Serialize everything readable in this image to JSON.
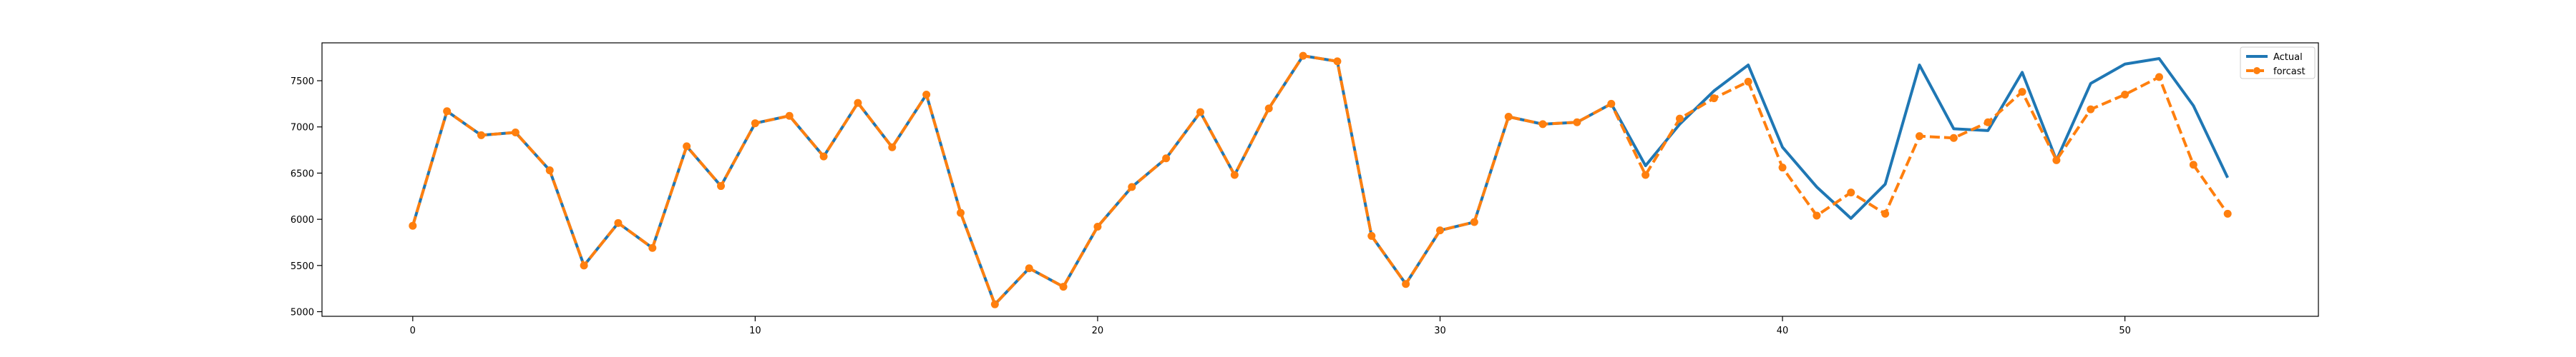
{
  "chart_data": {
    "type": "line",
    "title": "",
    "xlabel": "",
    "ylabel": "",
    "xlim": [
      -2.65,
      55.65
    ],
    "ylim": [
      4950,
      7910
    ],
    "xticks": [
      0,
      10,
      20,
      30,
      40,
      50
    ],
    "xtick_labels": [
      "0",
      "10",
      "20",
      "30",
      "40",
      "50"
    ],
    "yticks": [
      5000,
      5500,
      6000,
      6500,
      7000,
      7500
    ],
    "ytick_labels": [
      "5000",
      "5500",
      "6000",
      "6500",
      "7000",
      "7500"
    ],
    "grid": false,
    "legend": {
      "placement": "top-right"
    },
    "x": [
      0,
      1,
      2,
      3,
      4,
      5,
      6,
      7,
      8,
      9,
      10,
      11,
      12,
      13,
      14,
      15,
      16,
      17,
      18,
      19,
      20,
      21,
      22,
      23,
      24,
      25,
      26,
      27,
      28,
      29,
      30,
      31,
      32,
      33,
      34,
      35,
      36,
      37,
      38,
      39,
      40,
      41,
      42,
      43,
      44,
      45,
      46,
      47,
      48,
      49,
      50,
      51,
      52,
      53
    ],
    "series": [
      {
        "name": "Actual",
        "color": "#1f77b4",
        "style": "solid",
        "marker": "none",
        "values": [
          5930,
          7170,
          6910,
          6940,
          6530,
          5500,
          5960,
          5690,
          6790,
          6360,
          7040,
          7120,
          6680,
          7260,
          6780,
          7350,
          6070,
          5080,
          5470,
          5270,
          5920,
          6350,
          6660,
          7160,
          6480,
          7200,
          7770,
          7710,
          5820,
          5300,
          5880,
          5970,
          7110,
          7030,
          7050,
          7250,
          6580,
          7030,
          7390,
          7670,
          6780,
          6350,
          6010,
          6380,
          7670,
          6980,
          6960,
          7590,
          6640,
          7470,
          7680,
          7740,
          7230,
          6450
        ]
      },
      {
        "name": "forcast",
        "color": "#ff7f0e",
        "style": "dashed",
        "marker": "circle",
        "values": [
          5930,
          7170,
          6910,
          6940,
          6530,
          5500,
          5960,
          5690,
          6790,
          6360,
          7040,
          7120,
          6680,
          7260,
          6780,
          7350,
          6070,
          5080,
          5470,
          5270,
          5920,
          6350,
          6660,
          7160,
          6480,
          7200,
          7770,
          7710,
          5820,
          5300,
          5880,
          5970,
          7110,
          7030,
          7050,
          7250,
          6480,
          7090,
          7310,
          7490,
          6560,
          6040,
          6290,
          6060,
          6900,
          6880,
          7050,
          7380,
          6640,
          7190,
          7350,
          7540,
          6590,
          6060
        ]
      }
    ]
  }
}
